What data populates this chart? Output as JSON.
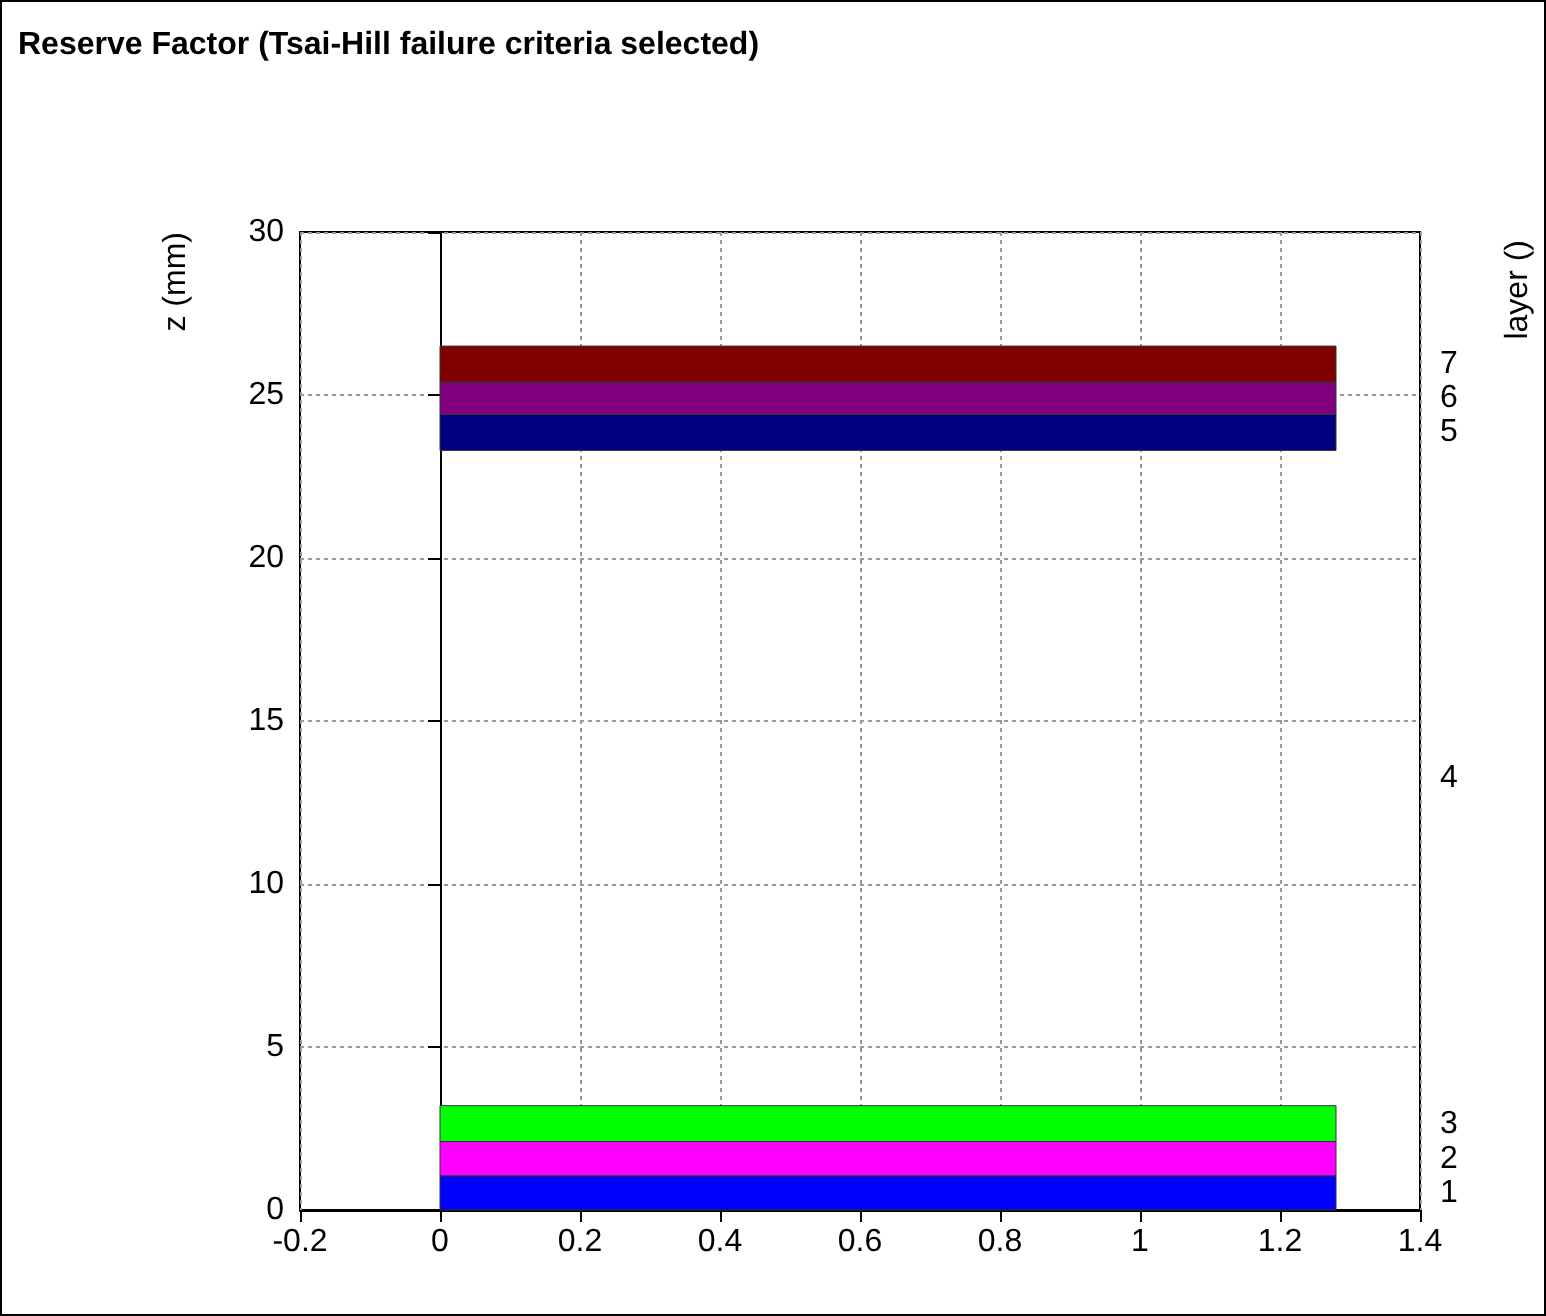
{
  "chart_data": {
    "type": "histogram",
    "orientation": "horizontal",
    "title": "Reserve Factor (Tsai-Hill failure criteria selected)",
    "ylabel": "z (mm)",
    "y2label": "layer ()",
    "bins": [
      0,
      1.05,
      2.1,
      3.2,
      23.3,
      24.4,
      25.4,
      26.5
    ],
    "values": [
      1.28,
      1.28,
      1.28,
      null,
      1.28,
      1.28,
      1.28
    ],
    "colors": [
      "#0000ff",
      "#ff00ff",
      "#00ff00",
      null,
      "#000080",
      "#800080",
      "#800000"
    ],
    "xlim": [
      -0.2,
      1.4
    ],
    "xticks": [
      -0.2,
      0,
      0.2,
      0.4,
      0.6,
      0.8,
      1,
      1.2,
      1.4
    ],
    "ylim": [
      0,
      30
    ],
    "yticks": [
      0,
      5,
      10,
      15,
      20,
      25,
      30
    ],
    "annotations": [
      "1",
      "2",
      "3",
      "4",
      "5",
      "6",
      "7"
    ],
    "grid": true
  }
}
